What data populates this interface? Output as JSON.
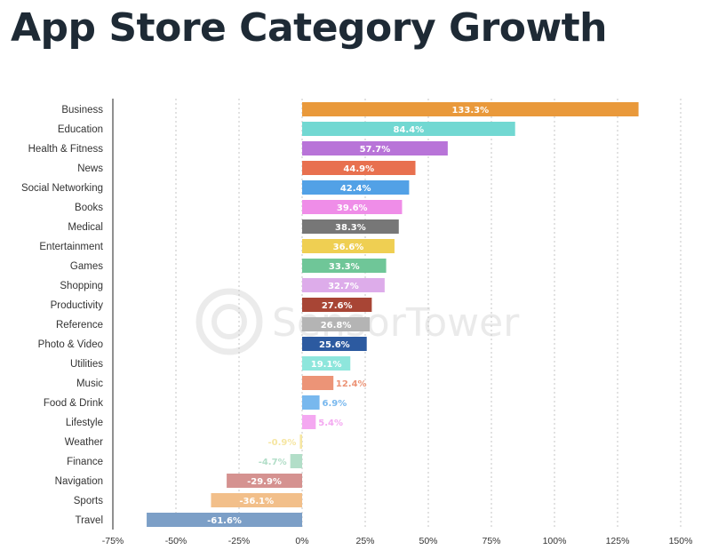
{
  "chart_data": {
    "type": "bar",
    "orientation": "horizontal",
    "title": "App Store Category Growth",
    "watermark": "SensorTower",
    "categories": [
      "Business",
      "Education",
      "Health & Fitness",
      "News",
      "Social Networking",
      "Books",
      "Medical",
      "Entertainment",
      "Games",
      "Shopping",
      "Productivity",
      "Reference",
      "Photo & Video",
      "Utilities",
      "Music",
      "Food & Drink",
      "Lifestyle",
      "Weather",
      "Finance",
      "Navigation",
      "Sports",
      "Travel"
    ],
    "values": [
      133.3,
      84.4,
      57.7,
      44.9,
      42.4,
      39.6,
      38.3,
      36.6,
      33.3,
      32.7,
      27.6,
      26.8,
      25.6,
      19.1,
      12.4,
      6.9,
      5.4,
      -0.9,
      -4.7,
      -29.9,
      -36.1,
      -61.6
    ],
    "value_labels": [
      "133.3%",
      "84.4%",
      "57.7%",
      "44.9%",
      "42.4%",
      "39.6%",
      "38.3%",
      "36.6%",
      "33.3%",
      "32.7%",
      "27.6%",
      "26.8%",
      "25.6%",
      "19.1%",
      "12.4%",
      "6.9%",
      "5.4%",
      "-0.9%",
      "-4.7%",
      "-29.9%",
      "-36.1%",
      "-61.6%"
    ],
    "colors": [
      "#e9993b",
      "#72d8d2",
      "#b874d8",
      "#e8704f",
      "#52a1e6",
      "#ef8de8",
      "#777777",
      "#efcf52",
      "#6fc698",
      "#ddacea",
      "#a84535",
      "#b4b4b4",
      "#2c5aa0",
      "#8ee6dc",
      "#ec9477",
      "#78b8ee",
      "#f4a8f1",
      "#f6e6a2",
      "#b2dec8",
      "#d59290",
      "#f2bf8a",
      "#7c9fc7"
    ],
    "xlim": [
      -75,
      150
    ],
    "xticks": [
      -75,
      -50,
      -25,
      0,
      25,
      50,
      75,
      100,
      125,
      150
    ],
    "xtick_labels": [
      "-75%",
      "-50%",
      "-25%",
      "0%",
      "25%",
      "50%",
      "75%",
      "100%",
      "125%",
      "150%"
    ],
    "grid": true,
    "legend": "none"
  }
}
